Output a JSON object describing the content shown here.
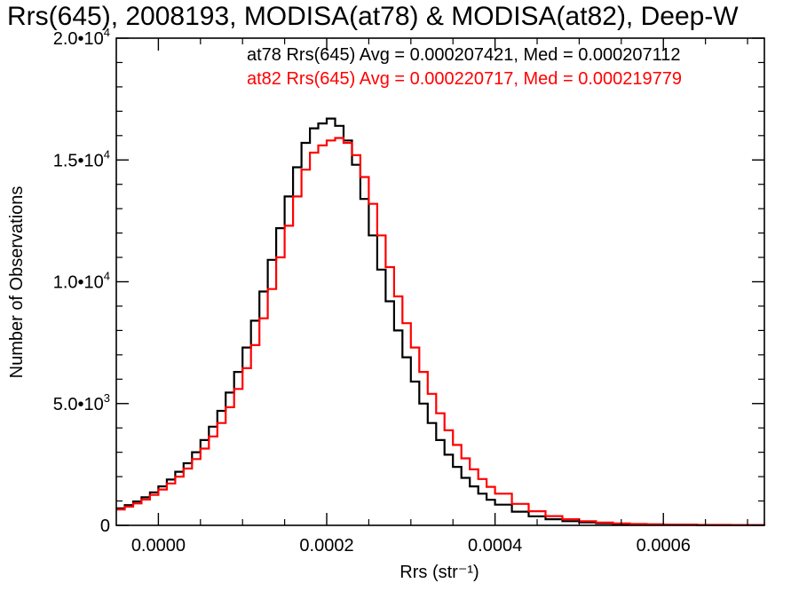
{
  "chart_data": {
    "type": "line",
    "title": "Rrs(645), 2008193, MODISA(at78) & MODISA(at82), Deep-W",
    "xlabel": "Rrs (str⁻¹)",
    "ylabel": "Number of Observations",
    "xlim": [
      -5e-05,
      0.00072
    ],
    "ylim": [
      0,
      20000
    ],
    "x_ticks": [
      0,
      0.0002,
      0.0004,
      0.0006
    ],
    "x_tick_labels": [
      "0.0000",
      "0.0002",
      "0.0004",
      "0.0006"
    ],
    "y_ticks": [
      0,
      5000,
      10000,
      15000,
      20000
    ],
    "y_tick_labels": [
      {
        "mantissa": "0",
        "exp": ""
      },
      {
        "mantissa": "5.0•10",
        "exp": "3"
      },
      {
        "mantissa": "1.0•10",
        "exp": "4"
      },
      {
        "mantissa": "1.5•10",
        "exp": "4"
      },
      {
        "mantissa": "2.0•10",
        "exp": "4"
      }
    ],
    "grid": false,
    "legend_position": "top-right",
    "series": [
      {
        "name": "at78 Rrs(645) Avg = 0.000207421, Med = 0.000207112",
        "color": "#000000",
        "x": [
          -5e-05,
          -4e-05,
          -3e-05,
          -2e-05,
          -1e-05,
          0.0,
          1e-05,
          2e-05,
          3e-05,
          4e-05,
          5e-05,
          6e-05,
          7e-05,
          8e-05,
          9e-05,
          0.0001,
          0.00011,
          0.00012,
          0.00013,
          0.00014,
          0.00015,
          0.00016,
          0.00017,
          0.00018,
          0.00019,
          0.0002,
          0.00021,
          0.00022,
          0.00023,
          0.00024,
          0.00025,
          0.00026,
          0.00027,
          0.00028,
          0.00029,
          0.0003,
          0.00031,
          0.00032,
          0.00033,
          0.00034,
          0.00035,
          0.00036,
          0.00037,
          0.00038,
          0.00039,
          0.0004,
          0.00042,
          0.00044,
          0.00046,
          0.00048,
          0.0005,
          0.00052,
          0.00054,
          0.00056,
          0.00058,
          0.0006,
          0.00064,
          0.00068,
          0.00072
        ],
        "y": [
          700,
          830,
          980,
          1150,
          1350,
          1600,
          1880,
          2200,
          2550,
          3000,
          3500,
          4050,
          4700,
          5450,
          6300,
          7300,
          8400,
          9600,
          10900,
          12200,
          13500,
          14700,
          15700,
          16300,
          16500,
          16700,
          16400,
          15800,
          14800,
          13400,
          11900,
          10500,
          9200,
          8000,
          6900,
          5900,
          5000,
          4200,
          3500,
          2900,
          2400,
          1950,
          1600,
          1300,
          1050,
          850,
          560,
          370,
          250,
          170,
          120,
          85,
          60,
          45,
          35,
          25,
          15,
          10,
          5
        ]
      },
      {
        "name": "at82 Rrs(645) Avg = 0.000220717, Med = 0.000219779",
        "color": "#ff0000",
        "x": [
          -5e-05,
          -4e-05,
          -3e-05,
          -2e-05,
          -1e-05,
          0.0,
          1e-05,
          2e-05,
          3e-05,
          4e-05,
          5e-05,
          6e-05,
          7e-05,
          8e-05,
          9e-05,
          0.0001,
          0.00011,
          0.00012,
          0.00013,
          0.00014,
          0.00015,
          0.00016,
          0.00017,
          0.00018,
          0.00019,
          0.0002,
          0.00021,
          0.00022,
          0.00023,
          0.00024,
          0.00025,
          0.00026,
          0.00027,
          0.00028,
          0.00029,
          0.0003,
          0.00031,
          0.00032,
          0.00033,
          0.00034,
          0.00035,
          0.00036,
          0.00037,
          0.00038,
          0.00039,
          0.0004,
          0.00042,
          0.00044,
          0.00046,
          0.00048,
          0.0005,
          0.00052,
          0.00054,
          0.00056,
          0.00058,
          0.0006,
          0.00064,
          0.00068,
          0.00072
        ],
        "y": [
          650,
          770,
          900,
          1060,
          1250,
          1470,
          1720,
          2000,
          2330,
          2720,
          3150,
          3650,
          4200,
          4850,
          5600,
          6450,
          7400,
          8500,
          9700,
          11000,
          12300,
          13500,
          14600,
          15300,
          15600,
          15800,
          15900,
          15700,
          15200,
          14300,
          13200,
          11900,
          10600,
          9400,
          8300,
          7300,
          6300,
          5400,
          4600,
          3900,
          3300,
          2750,
          2300,
          1900,
          1580,
          1300,
          880,
          580,
          380,
          250,
          170,
          115,
          80,
          55,
          40,
          30,
          18,
          10,
          5
        ]
      }
    ]
  }
}
